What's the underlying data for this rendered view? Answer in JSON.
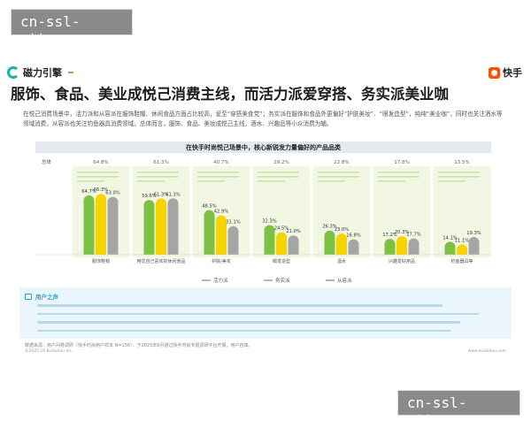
{
  "watermarks": {
    "top": "cn-ssl-wtt.com",
    "bottom": "cn-ssl-wtt.com"
  },
  "header": {
    "brand_name": "磁力引擎",
    "brand_tag": "",
    "platform_label": "快手",
    "title": "服饰、食品、美业成悦己消费主线，而活力派爱穿搭、务实派美业咖",
    "intro": "在悦己消费场景中，活力派和从容派在服饰鞋帽、休闲食品方面占比较高，爱至“穿搭美食党”；务实派在服饰和食品外更偏好“护肤美妆”、“眼发造型”，纯纯“美业咖”，同时也关注酒水等领域消费，从容派也关注钓鱼器具消费领域。总体而言，服饰、食品、美妆成悦己主线，酒水、兴趣品等小众消费为辅。"
  },
  "colors": {
    "green": "#7cc142",
    "yellow": "#f7d300",
    "gray": "#a5a5a5",
    "total_bg": "#f1f7e3",
    "legend_dash": "#b6b6b6"
  },
  "chart_data": {
    "type": "bar",
    "title": "在快手时尚悦己场景中，核心新锐发力量偏好的产品品类",
    "total_label": "总体",
    "categories": [
      "服饰鞋帽",
      "用优自己喜欢的休闲食品",
      "护肤/美妆",
      "眼发造型",
      "酒水",
      "兴趣爱好用品",
      "钓鱼器具等"
    ],
    "totals": [
      "64.8%",
      "61.3%",
      "40.7%",
      "29.2%",
      "22.8%",
      "17.8%",
      "13.5%"
    ],
    "series": [
      {
        "name": "活力派",
        "values": [
          64.7,
          59.6,
          48.5,
          32.3,
          26.3,
          17.2,
          14.1
        ],
        "labels": [
          "64.7%",
          "59.6%",
          "48.5%",
          "32.3%",
          "26.3%",
          "17.2%",
          "14.1%"
        ]
      },
      {
        "name": "务实派",
        "values": [
          66.3,
          61.3,
          42.9,
          24.5,
          23.0,
          20.3,
          11.1
        ],
        "labels": [
          "66.3%",
          "61.3%",
          "42.9%",
          "24.5%",
          "23.0%",
          "20.3%",
          "11.1%"
        ]
      },
      {
        "name": "从容派",
        "values": [
          63.0,
          61.3,
          31.1,
          21.0,
          16.8,
          17.7,
          19.3
        ],
        "labels": [
          "63.0%",
          "61.3%",
          "31.1%",
          "21.0%",
          "16.8%",
          "17.7%",
          "19.3%"
        ]
      }
    ],
    "ylim": [
      0,
      80
    ],
    "legend_position": "bottom"
  },
  "note": {
    "title": "用户之声"
  },
  "source": "数据来源：用户问卷调研（快手时尚用户样本 N=156），于2025年6月通过快手时尚专题调研平台开展，用户自填。",
  "footer": {
    "left": "©2025.10 Kuaishou Inc.",
    "right": "www.kuaishou.com"
  }
}
